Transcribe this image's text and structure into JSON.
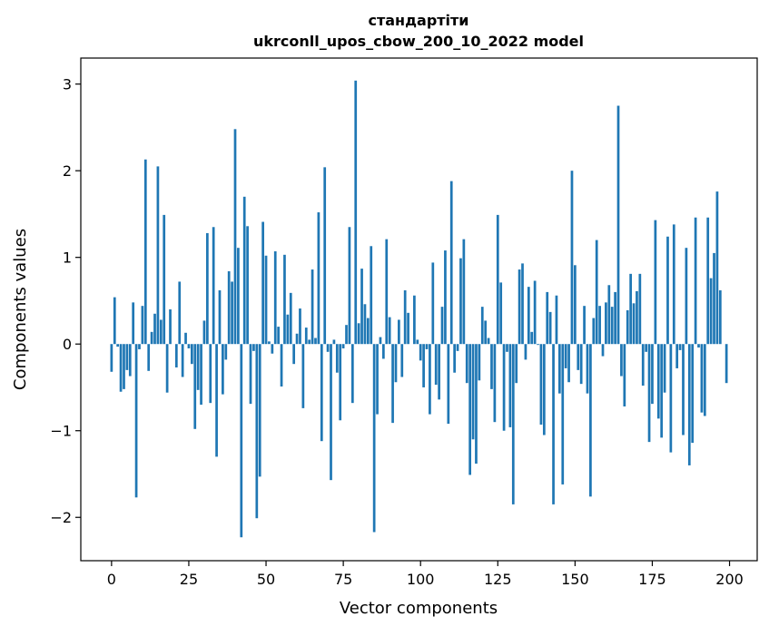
{
  "chart_data": {
    "type": "bar",
    "title": "стандартіти",
    "subtitle": "ukrconll_upos_cbow_200_10_2022 model",
    "xlabel": "Vector components",
    "ylabel": "Components values",
    "xlim": [
      -9.95,
      208.95
    ],
    "ylim": [
      -2.5,
      3.3
    ],
    "xticks": [
      0,
      25,
      50,
      75,
      100,
      125,
      150,
      175,
      200
    ],
    "yticks": [
      -2,
      -1,
      0,
      1,
      2,
      3
    ],
    "xtick_labels": [
      "0",
      "25",
      "50",
      "75",
      "100",
      "125",
      "150",
      "175",
      "200"
    ],
    "ytick_labels": [
      "−2",
      "−1",
      "0",
      "1",
      "2",
      "3"
    ],
    "bar_color": "#1f77b4",
    "grid": false,
    "legend": "none",
    "x": [
      0,
      1,
      2,
      3,
      4,
      5,
      6,
      7,
      8,
      9,
      10,
      11,
      12,
      13,
      14,
      15,
      16,
      17,
      18,
      19,
      20,
      21,
      22,
      23,
      24,
      25,
      26,
      27,
      28,
      29,
      30,
      31,
      32,
      33,
      34,
      35,
      36,
      37,
      38,
      39,
      40,
      41,
      42,
      43,
      44,
      45,
      46,
      47,
      48,
      49,
      50,
      51,
      52,
      53,
      54,
      55,
      56,
      57,
      58,
      59,
      60,
      61,
      62,
      63,
      64,
      65,
      66,
      67,
      68,
      69,
      70,
      71,
      72,
      73,
      74,
      75,
      76,
      77,
      78,
      79,
      80,
      81,
      82,
      83,
      84,
      85,
      86,
      87,
      88,
      89,
      90,
      91,
      92,
      93,
      94,
      95,
      96,
      97,
      98,
      99,
      100,
      101,
      102,
      103,
      104,
      105,
      106,
      107,
      108,
      109,
      110,
      111,
      112,
      113,
      114,
      115,
      116,
      117,
      118,
      119,
      120,
      121,
      122,
      123,
      124,
      125,
      126,
      127,
      128,
      129,
      130,
      131,
      132,
      133,
      134,
      135,
      136,
      137,
      138,
      139,
      140,
      141,
      142,
      143,
      144,
      145,
      146,
      147,
      148,
      149,
      150,
      151,
      152,
      153,
      154,
      155,
      156,
      157,
      158,
      159,
      160,
      161,
      162,
      163,
      164,
      165,
      166,
      167,
      168,
      169,
      170,
      171,
      172,
      173,
      174,
      175,
      176,
      177,
      178,
      179,
      180,
      181,
      182,
      183,
      184,
      185,
      186,
      187,
      188,
      189,
      190,
      191,
      192,
      193,
      194,
      195,
      196,
      197,
      198,
      199
    ],
    "values": [
      -0.32,
      0.54,
      -0.03,
      -0.55,
      -0.52,
      -0.3,
      -0.37,
      0.48,
      -1.77,
      -0.06,
      0.44,
      2.13,
      -0.31,
      0.14,
      0.35,
      2.05,
      0.28,
      1.49,
      -0.56,
      0.4,
      0.0,
      -0.27,
      0.72,
      -0.38,
      0.13,
      -0.05,
      -0.23,
      -0.98,
      -0.53,
      -0.7,
      0.27,
      1.28,
      -0.68,
      1.35,
      -1.3,
      0.62,
      -0.58,
      -0.18,
      0.84,
      0.72,
      2.48,
      1.11,
      -2.23,
      1.7,
      1.36,
      -0.69,
      -0.08,
      -2.01,
      -1.53,
      1.41,
      1.02,
      0.03,
      -0.11,
      1.07,
      0.2,
      -0.49,
      1.03,
      0.34,
      0.59,
      -0.23,
      0.12,
      0.41,
      -0.74,
      0.19,
      0.05,
      0.86,
      0.07,
      1.52,
      -1.12,
      2.04,
      -0.09,
      -1.57,
      0.05,
      -0.33,
      -0.88,
      -0.05,
      0.22,
      1.35,
      -0.68,
      3.04,
      0.24,
      0.87,
      0.46,
      0.3,
      1.13,
      -2.17,
      -0.81,
      0.08,
      -0.17,
      1.21,
      0.31,
      -0.91,
      -0.44,
      0.28,
      -0.38,
      0.62,
      0.36,
      0.0,
      0.56,
      0.05,
      -0.19,
      -0.5,
      -0.06,
      -0.81,
      0.94,
      -0.47,
      -0.64,
      0.43,
      1.08,
      -0.92,
      1.88,
      -0.33,
      -0.08,
      0.99,
      1.21,
      -0.45,
      -1.51,
      -1.1,
      -1.38,
      -0.42,
      0.43,
      0.27,
      0.07,
      -0.52,
      -0.9,
      1.49,
      0.71,
      -1.0,
      -0.09,
      -0.96,
      -1.85,
      -0.45,
      0.86,
      0.93,
      -0.18,
      0.66,
      0.14,
      0.73,
      -0.01,
      -0.93,
      -1.05,
      0.6,
      0.37,
      -1.85,
      0.56,
      -0.57,
      -1.62,
      -0.28,
      -0.44,
      2.0,
      0.91,
      -0.3,
      -0.46,
      0.44,
      -0.57,
      -1.76,
      0.3,
      1.2,
      0.44,
      -0.14,
      0.48,
      0.68,
      0.43,
      0.6,
      2.75,
      -0.37,
      -0.72,
      0.39,
      0.81,
      0.47,
      0.61,
      0.81,
      -0.48,
      -0.09,
      -1.13,
      -0.69,
      1.43,
      -0.86,
      -1.08,
      -0.56,
      1.24,
      -1.25,
      1.38,
      -0.28,
      -0.07,
      -1.05,
      1.11,
      -1.4,
      -1.14,
      1.46,
      -0.04,
      -0.79,
      -0.83,
      1.46,
      0.76,
      1.05,
      1.76,
      0.62,
      0.0,
      -0.45
    ]
  }
}
